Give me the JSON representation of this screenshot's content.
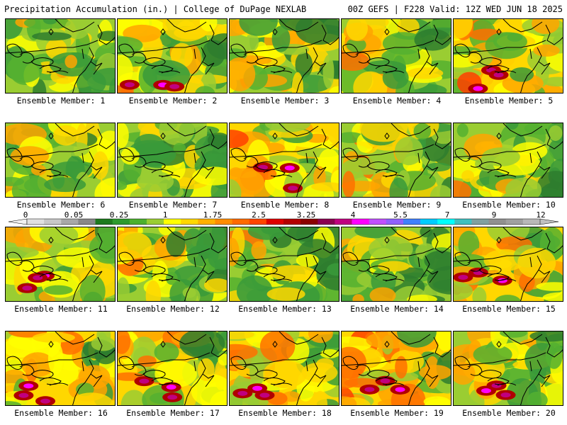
{
  "header": {
    "left": "Precipitation Accumulation (in.) | College of DuPage NEXLAB",
    "right": "00Z GEFS | F228 Valid: 12Z WED JUN 18 2025"
  },
  "panels": [
    {
      "label": "Ensemble Member: 1",
      "wetness": 0.25
    },
    {
      "label": "Ensemble Member: 2",
      "wetness": 0.45
    },
    {
      "label": "Ensemble Member: 3",
      "wetness": 0.3
    },
    {
      "label": "Ensemble Member: 4",
      "wetness": 0.35
    },
    {
      "label": "Ensemble Member: 5",
      "wetness": 0.5
    },
    {
      "label": "Ensemble Member: 6",
      "wetness": 0.25
    },
    {
      "label": "Ensemble Member: 7",
      "wetness": 0.3
    },
    {
      "label": "Ensemble Member: 8",
      "wetness": 0.6
    },
    {
      "label": "Ensemble Member: 9",
      "wetness": 0.4
    },
    {
      "label": "Ensemble Member: 10",
      "wetness": 0.4
    },
    {
      "label": "Ensemble Member: 11",
      "wetness": 0.45
    },
    {
      "label": "Ensemble Member: 12",
      "wetness": 0.3
    },
    {
      "label": "Ensemble Member: 13",
      "wetness": 0.35
    },
    {
      "label": "Ensemble Member: 14",
      "wetness": 0.25
    },
    {
      "label": "Ensemble Member: 15",
      "wetness": 0.55
    },
    {
      "label": "Ensemble Member: 16",
      "wetness": 0.55
    },
    {
      "label": "Ensemble Member: 17",
      "wetness": 0.5
    },
    {
      "label": "Ensemble Member: 18",
      "wetness": 0.55
    },
    {
      "label": "Ensemble Member: 19",
      "wetness": 0.6
    },
    {
      "label": "Ensemble Member: 20",
      "wetness": 0.45
    }
  ],
  "colorbar": {
    "labels": [
      "0",
      "0.05",
      "0.25",
      "1",
      "1.75",
      "2.5",
      "3.25",
      "4",
      "5.5",
      "7",
      "9",
      "12"
    ],
    "colors": [
      "#e0e0e0",
      "#c8c8c8",
      "#a8a8a8",
      "#888888",
      "#1e7a1e",
      "#2e9a2e",
      "#4cb02e",
      "#9acd32",
      "#ffff00",
      "#ffd700",
      "#ffb000",
      "#ff8c00",
      "#ff6a00",
      "#ff4500",
      "#e00000",
      "#b40000",
      "#8b0000",
      "#8b0050",
      "#c00080",
      "#ff00ff",
      "#c050ff",
      "#9060ff",
      "#4080ff",
      "#00ccff",
      "#00ffff",
      "#40c0c0",
      "#80a0a0",
      "#909090",
      "#a0a0a0",
      "#b8b8b8"
    ]
  }
}
